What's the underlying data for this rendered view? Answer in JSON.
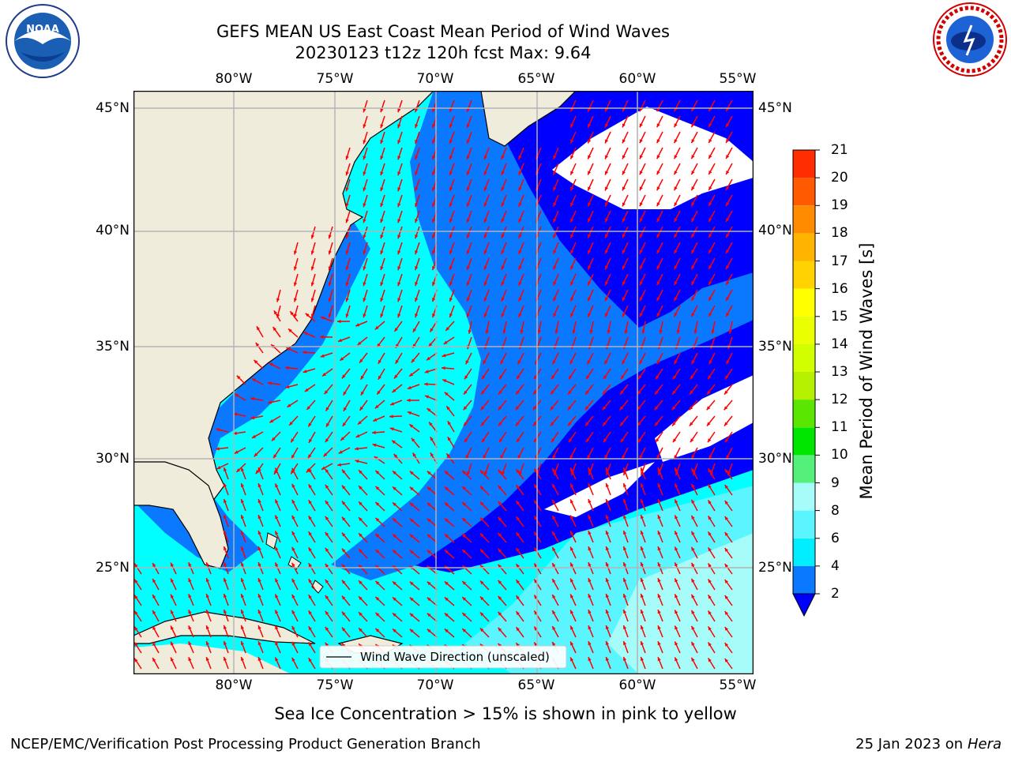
{
  "header": {
    "title": "GEFS MEAN US East Coast Mean Period of Wind Waves",
    "subtitle": "20230123 t12z 120h fcst   Max: 9.64"
  },
  "map": {
    "lon_labels": [
      "80°W",
      "75°W",
      "70°W",
      "65°W",
      "60°W",
      "55°W"
    ],
    "lat_labels": [
      "45°N",
      "40°N",
      "35°N",
      "30°N",
      "25°N"
    ],
    "legend_label": "Wind Wave Direction (unscaled)",
    "land_color": "#efecdc",
    "arrow_color": "#ff0000"
  },
  "colorbar": {
    "label": "Mean Period of Wind Waves [s]",
    "ticks": [
      "2",
      "4",
      "6",
      "8",
      "9",
      "10",
      "11",
      "12",
      "13",
      "14",
      "15",
      "16",
      "17",
      "18",
      "19",
      "20",
      "21"
    ],
    "colors": [
      "#0a78ff",
      "#00eeff",
      "#5af5ff",
      "#a6fcf8",
      "#55f07a",
      "#00e600",
      "#5ae600",
      "#b4f000",
      "#d2ff00",
      "#eaff00",
      "#ffff00",
      "#ffd200",
      "#ffb400",
      "#ff8c00",
      "#ff5a00",
      "#ff2d00",
      "#ff0000"
    ],
    "extend_color": "#0000ff"
  },
  "notes": {
    "sea_ice": "Sea Ice Concentration > 15% is shown in pink to yellow"
  },
  "footer": {
    "left": "NCEP/EMC/Verification Post Processing Product Generation Branch",
    "right_date": "25 Jan 2023 on ",
    "right_machine": "Hera"
  },
  "logos": {
    "noaa_text": "NOAA",
    "nws_text": "NATIONAL WEATHER SERVICE"
  }
}
